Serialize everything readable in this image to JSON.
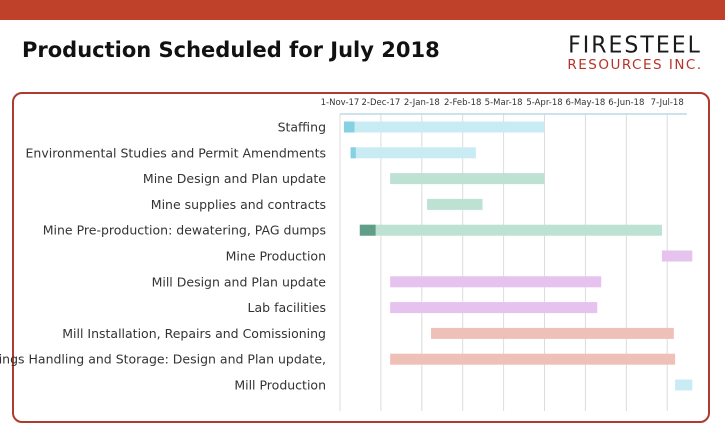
{
  "header": {
    "title": "Production Scheduled for July 2018",
    "accent_color": "#c0412a"
  },
  "logo": {
    "name": "FIRESTEEL",
    "subtitle": "RESOURCES INC."
  },
  "chart_data": {
    "type": "gantt",
    "title": "",
    "x_axis": {
      "type": "date",
      "ticks": [
        "1-Nov-17",
        "2-Dec-17",
        "2-Jan-18",
        "2-Feb-18",
        "5-Mar-18",
        "5-Apr-18",
        "6-May-18",
        "6-Jun-18",
        "7-Jul-18"
      ],
      "range": [
        "2017-11-01",
        "2018-07-22"
      ],
      "position": "top"
    },
    "grid": true,
    "tasks": [
      {
        "name": "Staffing",
        "start": "2017-11-04",
        "end": "2018-04-05",
        "progress_end": "2017-11-12",
        "color": "#c9ecf4",
        "progress_color": "#84d1e4"
      },
      {
        "name": "Environmental Studies and Permit Amendments",
        "start": "2017-11-09",
        "end": "2018-02-12",
        "progress_end": "2017-11-13",
        "color": "#c9ecf4",
        "progress_color": "#84d1e4"
      },
      {
        "name": "Mine Design and Plan update",
        "start": "2017-12-09",
        "end": "2018-04-05",
        "color": "#bde1d3"
      },
      {
        "name": "Mine supplies and contracts",
        "start": "2018-01-06",
        "end": "2018-02-17",
        "color": "#bde1d3"
      },
      {
        "name": "Mine Pre-production: dewatering, PAG dumps",
        "start": "2017-11-16",
        "end": "2018-07-03",
        "progress_end": "2017-11-28",
        "color": "#bde1d3",
        "progress_color": "#5f9f87"
      },
      {
        "name": "Mine Production",
        "start": "2018-07-03",
        "end": "2018-07-26",
        "color": "#e6c2ef"
      },
      {
        "name": "Mill Design and Plan update",
        "start": "2017-12-09",
        "end": "2018-05-18",
        "color": "#e6c2ef"
      },
      {
        "name": "Lab facilities",
        "start": "2017-12-09",
        "end": "2018-05-15",
        "color": "#e6c2ef"
      },
      {
        "name": "Mill Installation, Repairs and Comissioning",
        "start": "2018-01-09",
        "end": "2018-07-12",
        "color": "#efc0b7"
      },
      {
        "name": "Tailings Handling and Storage: Design and Plan update,",
        "start": "2017-12-09",
        "end": "2018-07-13",
        "color": "#efc0b7"
      },
      {
        "name": "Mill Production",
        "start": "2018-07-13",
        "end": "2018-07-26",
        "color": "#c9ecf4"
      }
    ]
  }
}
